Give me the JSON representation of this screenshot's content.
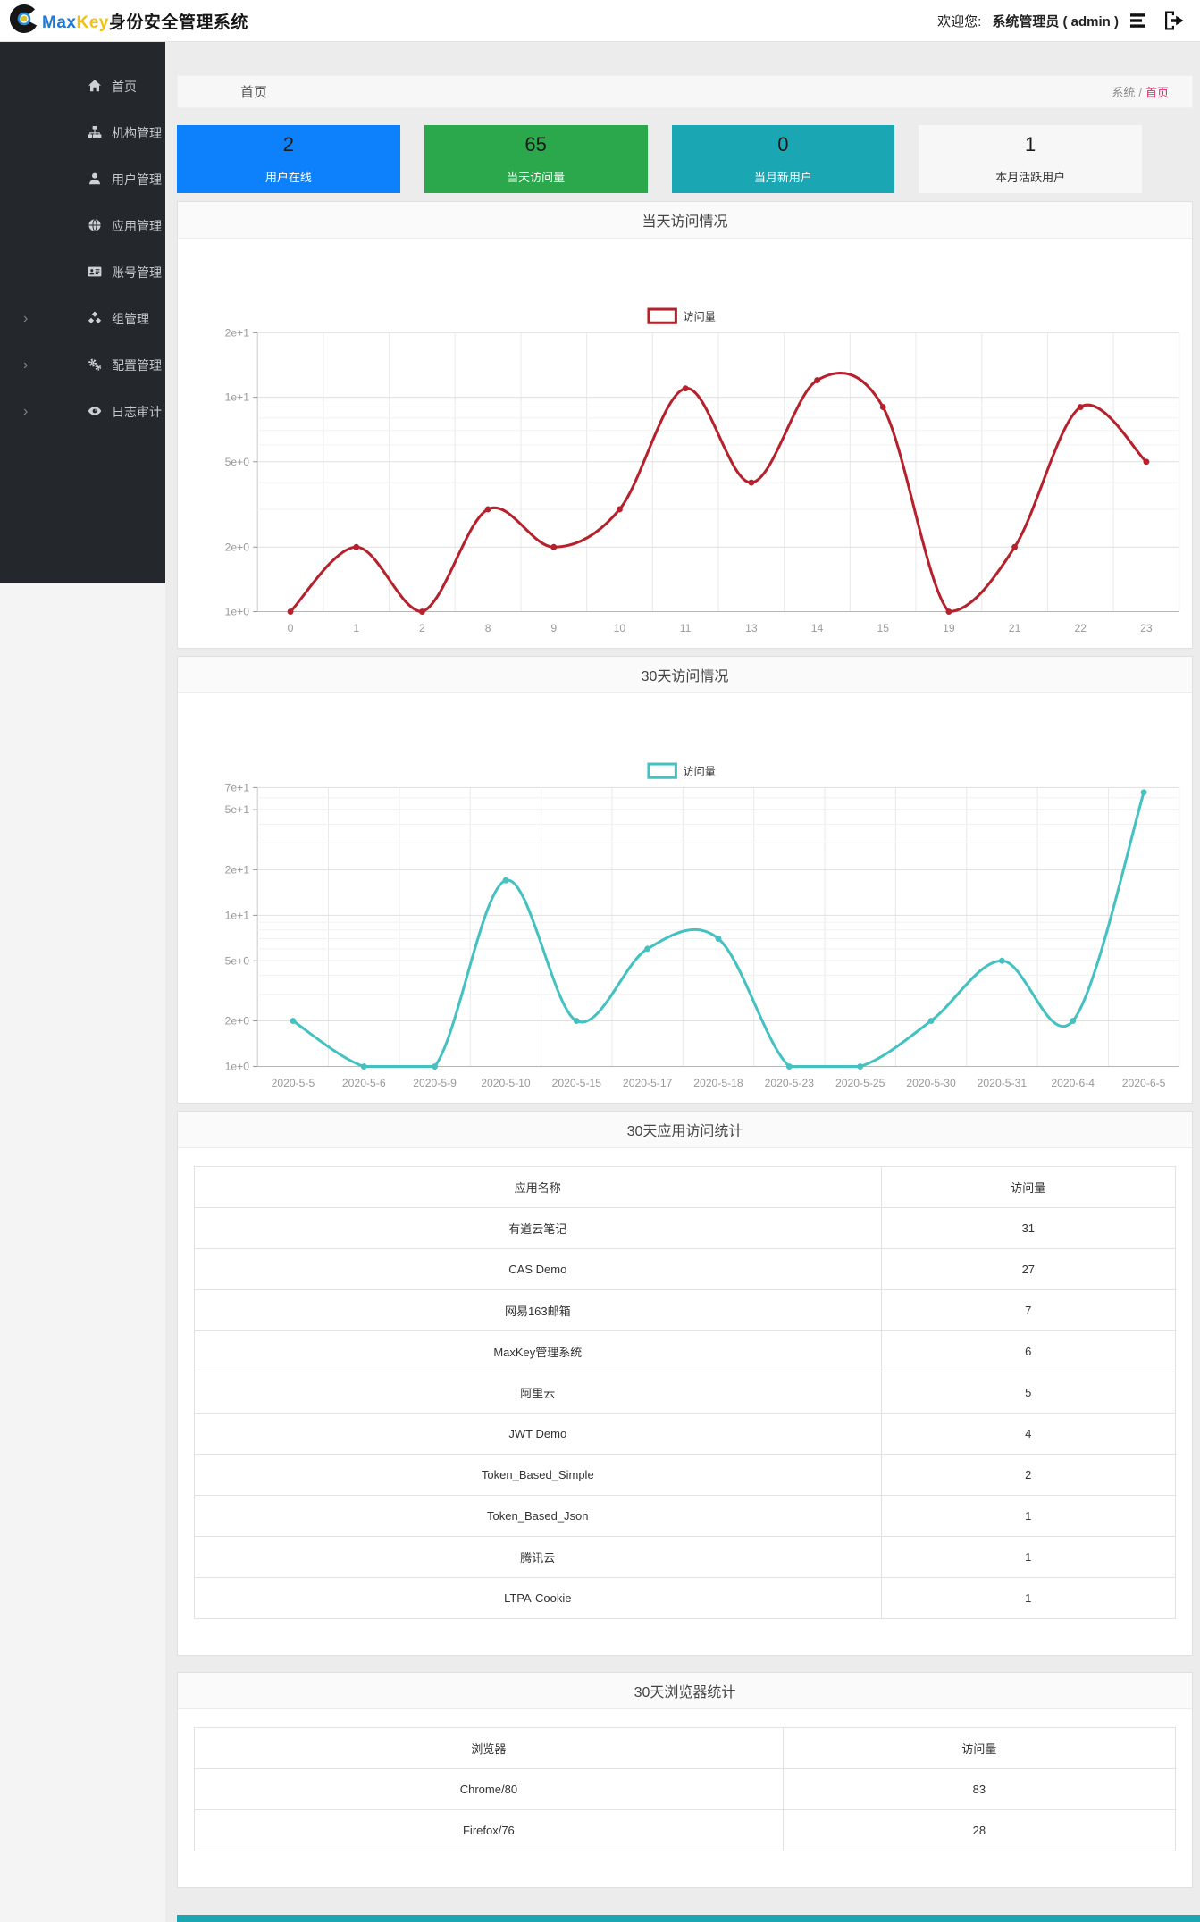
{
  "header": {
    "brand": {
      "word_blue": "Max",
      "word_yellow": "Key",
      "word_cn": "身份安全管理系统"
    },
    "welcome_label": "欢迎您:",
    "user_display": "系统管理员 ( admin )"
  },
  "sidebar": {
    "items": [
      {
        "key": "home",
        "label": "首页",
        "icon": "home-icon",
        "expandable": false
      },
      {
        "key": "org",
        "label": "机构管理",
        "icon": "org-sitemap-icon",
        "expandable": false
      },
      {
        "key": "user",
        "label": "用户管理",
        "icon": "user-icon",
        "expandable": false
      },
      {
        "key": "app",
        "label": "应用管理",
        "icon": "app-globe-icon",
        "expandable": false
      },
      {
        "key": "account",
        "label": "账号管理",
        "icon": "account-card-icon",
        "expandable": false
      },
      {
        "key": "group",
        "label": "组管理",
        "icon": "group-cubes-icon",
        "expandable": true
      },
      {
        "key": "config",
        "label": "配置管理",
        "icon": "config-gears-icon",
        "expandable": true
      },
      {
        "key": "audit",
        "label": "日志审计",
        "icon": "log-audit-eye-icon",
        "expandable": true
      }
    ]
  },
  "breadcrumb": {
    "page_title": "首页",
    "root": "系统",
    "separator": "/",
    "current": "首页"
  },
  "stats": [
    {
      "key": "online-users",
      "value": "2",
      "label": "用户在线",
      "bg": "#0d80fb",
      "label_color": "#ffffff"
    },
    {
      "key": "today-visits",
      "value": "65",
      "label": "当天访问量",
      "bg": "#2aa84b",
      "label_color": "#ffffff"
    },
    {
      "key": "month-new-users",
      "value": "0",
      "label": "当月新用户",
      "bg": "#1aa7b3",
      "label_color": "#ffffff"
    },
    {
      "key": "month-active-users",
      "value": "1",
      "label": "本月活跃用户",
      "bg": "#f7f7f7",
      "label_color": "#333333"
    }
  ],
  "chart_data": [
    {
      "type": "line",
      "title": "当天访问情况",
      "legend": "访问量",
      "series_color": "#b5212c",
      "categories": [
        "0",
        "1",
        "2",
        "8",
        "9",
        "10",
        "11",
        "13",
        "14",
        "15",
        "19",
        "21",
        "22",
        "23"
      ],
      "values": [
        1,
        2,
        1,
        3,
        2,
        3,
        11,
        4,
        12,
        9,
        1,
        2,
        9,
        5
      ],
      "y_scale": "log",
      "ylim": [
        1,
        20
      ],
      "y_tick_labels": [
        "2e+1",
        "1e+1",
        "5e+0",
        "2e+0",
        "1e+0"
      ],
      "y_tick_values": [
        20,
        10,
        5,
        2,
        1
      ],
      "y_minor_values": [
        3,
        4,
        6,
        7,
        8,
        9
      ],
      "grid": true,
      "legend_position": "top-center",
      "xlabel": "",
      "ylabel": ""
    },
    {
      "type": "line",
      "title": "30天访问情况",
      "legend": "访问量",
      "series_color": "#45c1c1",
      "categories": [
        "2020-5-5",
        "2020-5-6",
        "2020-5-9",
        "2020-5-10",
        "2020-5-15",
        "2020-5-17",
        "2020-5-18",
        "2020-5-23",
        "2020-5-25",
        "2020-5-30",
        "2020-5-31",
        "2020-6-4",
        "2020-6-5"
      ],
      "values": [
        2,
        1,
        1,
        17,
        2,
        6,
        7,
        1,
        1,
        2,
        5,
        2,
        65
      ],
      "y_scale": "log",
      "ylim": [
        1,
        70
      ],
      "y_tick_labels": [
        "7e+1",
        "5e+1",
        "2e+1",
        "1e+1",
        "5e+0",
        "2e+0",
        "1e+0"
      ],
      "y_tick_values": [
        70,
        50,
        20,
        10,
        5,
        2,
        1
      ],
      "y_minor_values": [
        3,
        4,
        6,
        7,
        8,
        9,
        30,
        40,
        60
      ],
      "grid": true,
      "legend_position": "top-center",
      "xlabel": "",
      "ylabel": ""
    }
  ],
  "app_stats": {
    "title": "30天应用访问统计",
    "headers": [
      "应用名称",
      "访问量"
    ],
    "rows": [
      [
        "有道云笔记",
        "31"
      ],
      [
        "CAS Demo",
        "27"
      ],
      [
        "网易163邮箱",
        "7"
      ],
      [
        "MaxKey管理系统",
        "6"
      ],
      [
        "阿里云",
        "5"
      ],
      [
        "JWT Demo",
        "4"
      ],
      [
        "Token_Based_Simple",
        "2"
      ],
      [
        "Token_Based_Json",
        "1"
      ],
      [
        "腾讯云",
        "1"
      ],
      [
        "LTPA-Cookie",
        "1"
      ]
    ]
  },
  "browser_stats": {
    "title": "30天浏览器统计",
    "headers": [
      "浏览器",
      "访问量"
    ],
    "rows": [
      [
        "Chrome/80",
        "83"
      ],
      [
        "Firefox/76",
        "28"
      ]
    ]
  },
  "colors": {
    "breadcrumb_active": "#e62565",
    "footer_strip": "#1aa7b3",
    "sidebar_bg": "#24272c",
    "line_red": "#b5212c",
    "line_teal": "#45c1c1",
    "stat_blue": "#0d80fb",
    "stat_green": "#2aa84b",
    "stat_teal": "#1aa7b3"
  }
}
